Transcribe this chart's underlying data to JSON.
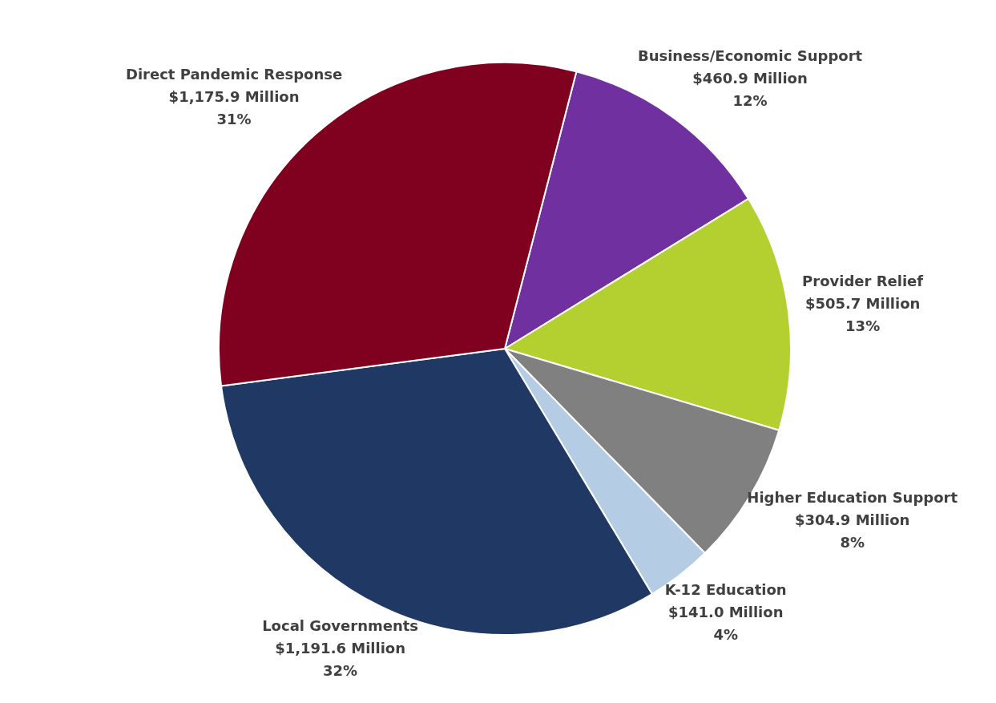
{
  "chart_data": {
    "type": "pie",
    "categories": [
      "Business/Economic Support",
      "Provider Relief",
      "Higher Education Support",
      "K-12 Education",
      "Local Governments",
      "Direct Pandemic Response"
    ],
    "values": [
      460.9,
      505.7,
      304.9,
      141.0,
      1191.6,
      1175.9
    ],
    "colors": [
      "#7030a0",
      "#b4cf30",
      "#808080",
      "#b4cde4",
      "#1f3864",
      "#800020"
    ],
    "value_labels": [
      "$460.9 Million\n12%",
      "$505.7 Million\n13%",
      "$304.9 Million\n8%",
      "$141.0 Million\n4%",
      "$1,191.6 Million\n32%",
      "$1,175.9 Million\n31%"
    ],
    "legend": false
  }
}
